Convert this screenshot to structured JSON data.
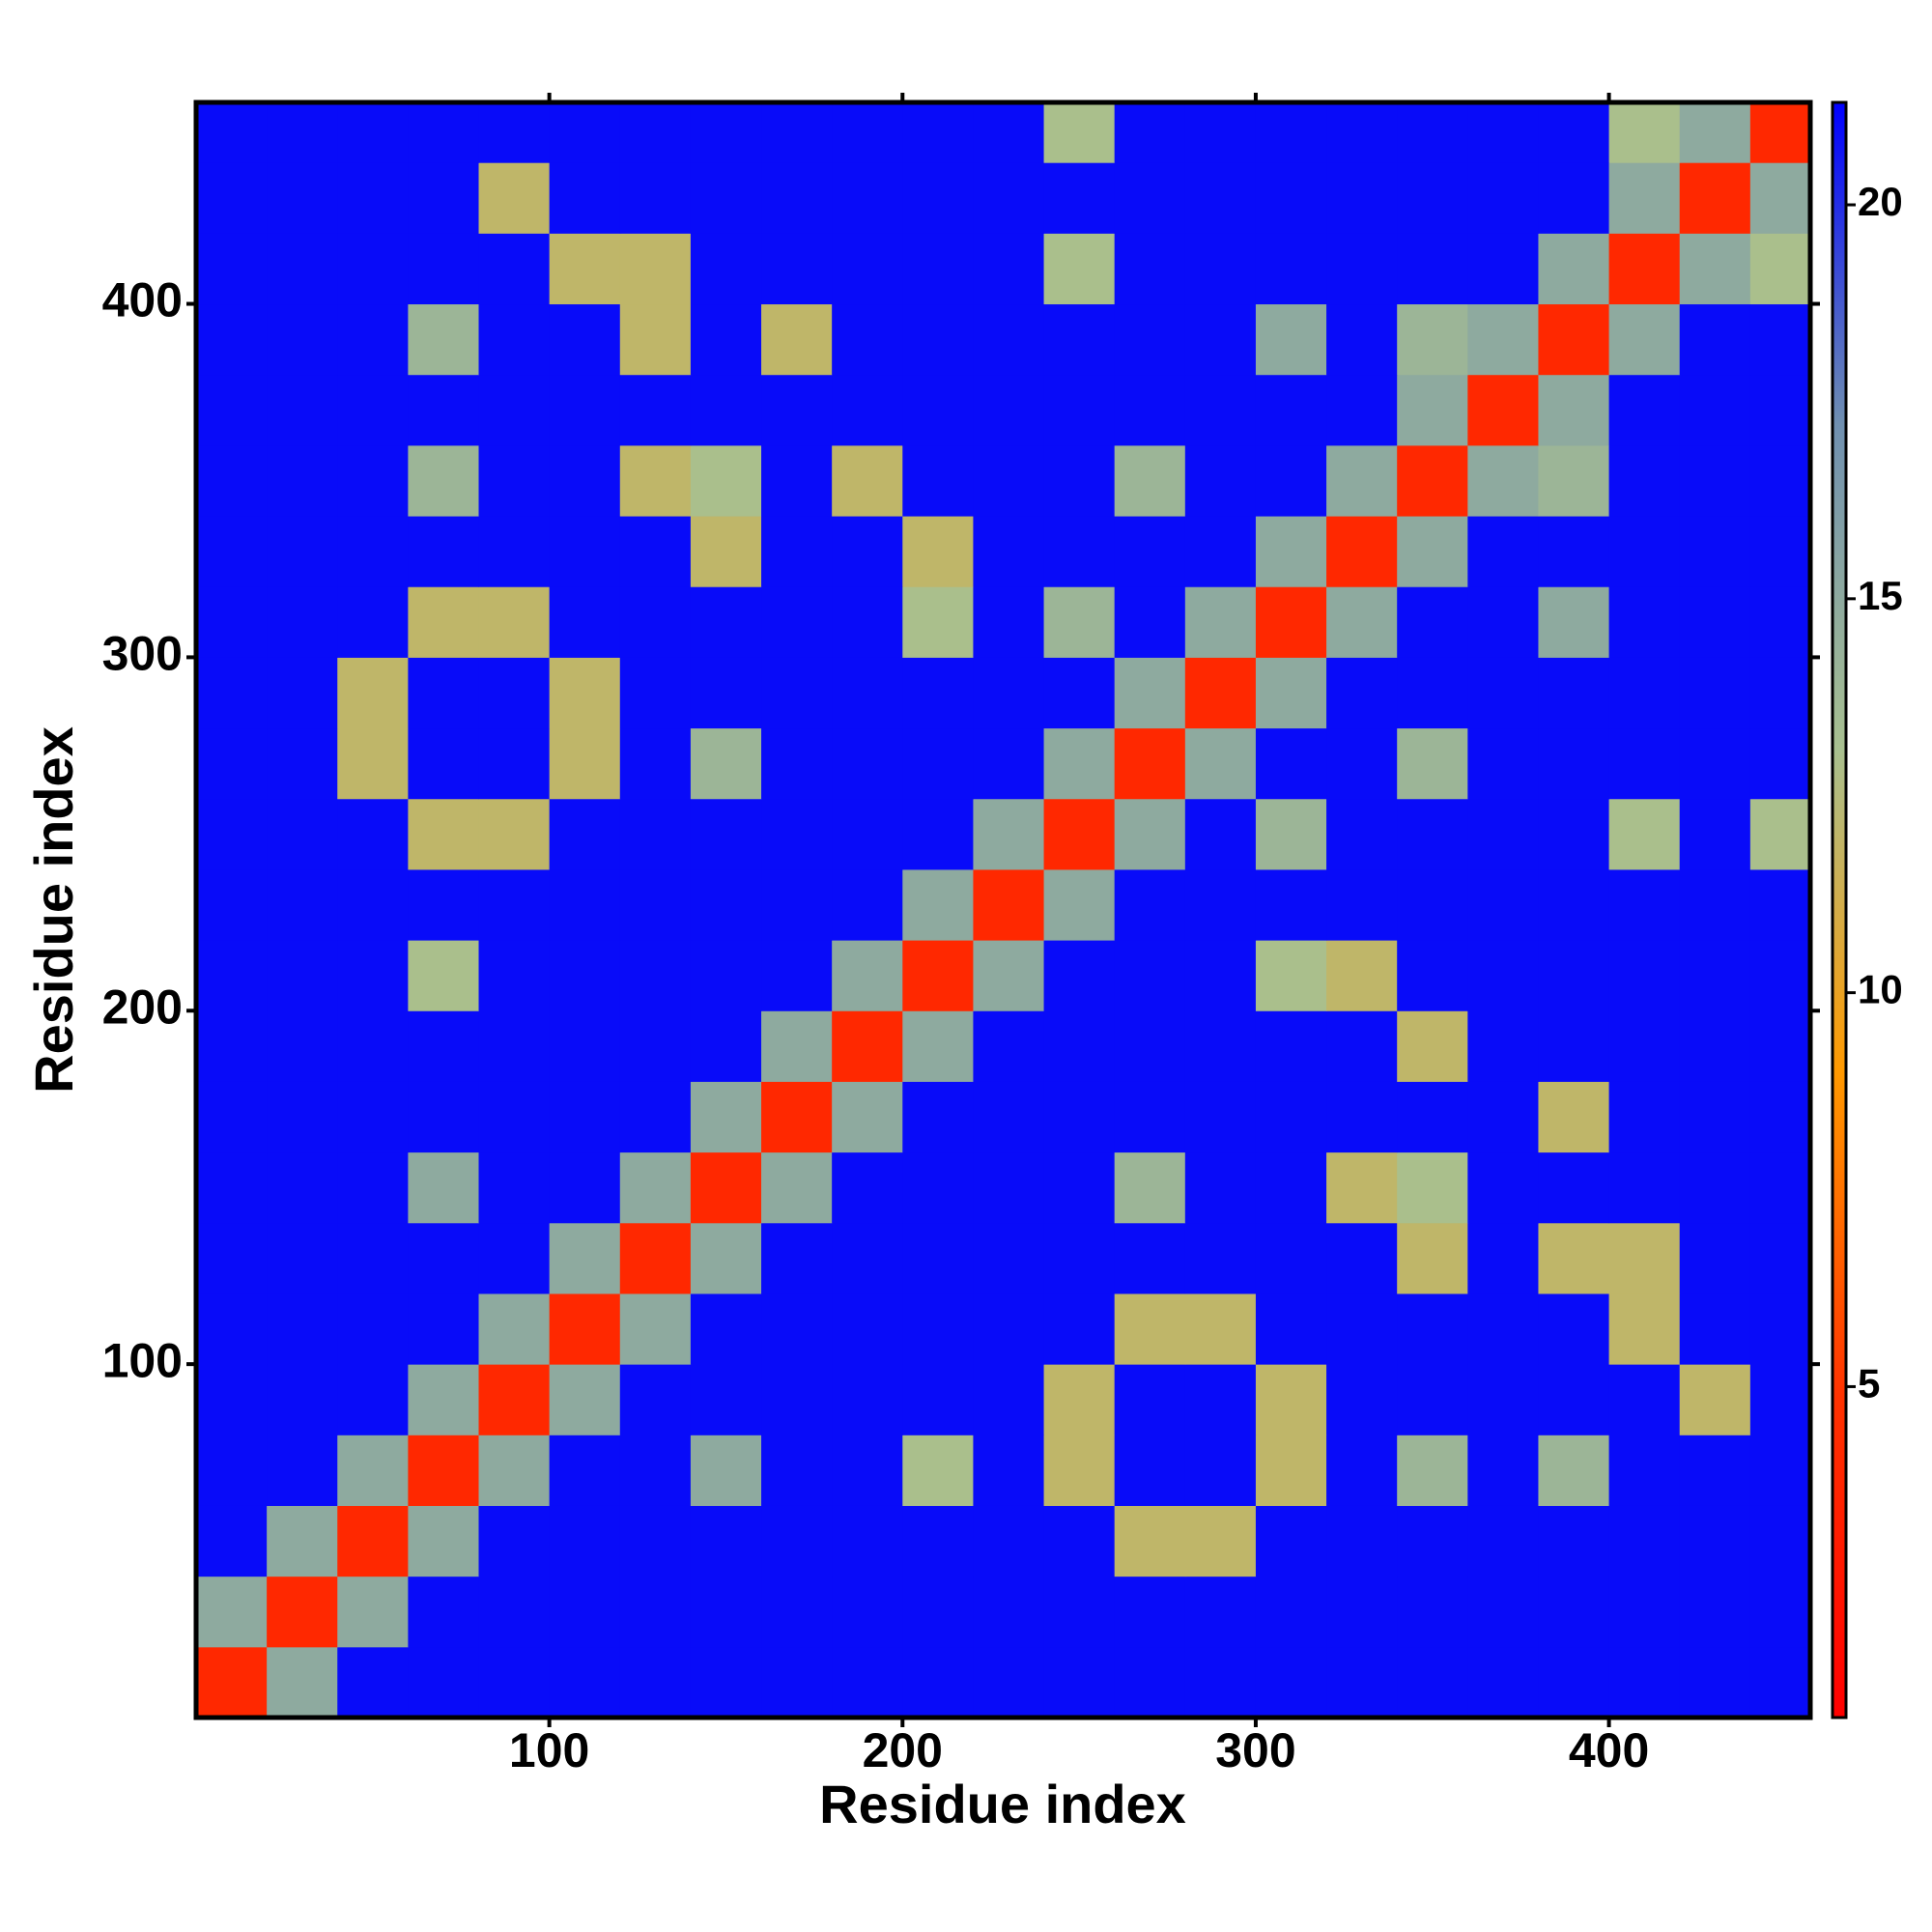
{
  "chart_data": {
    "type": "heatmap",
    "x_label": "Residue index",
    "y_label": "Residue index",
    "x": [
      10,
      30,
      50,
      70,
      90,
      110,
      130,
      150,
      170,
      190,
      210,
      230,
      250,
      270,
      290,
      310,
      330,
      350,
      370,
      390,
      410,
      430,
      450
    ],
    "y": [
      10,
      30,
      50,
      70,
      90,
      110,
      130,
      150,
      170,
      190,
      210,
      230,
      250,
      270,
      290,
      310,
      330,
      350,
      370,
      390,
      410,
      430,
      450
    ],
    "z": [
      [
        4,
        15,
        21,
        21,
        21,
        21,
        21,
        21,
        21,
        21,
        21,
        21,
        21,
        21,
        21,
        21,
        21,
        21,
        21,
        21,
        21,
        21,
        21
      ],
      [
        15,
        4,
        15,
        21,
        21,
        21,
        21,
        21,
        21,
        21,
        21,
        21,
        21,
        21,
        21,
        21,
        21,
        21,
        21,
        21,
        21,
        21,
        21
      ],
      [
        21,
        15,
        4,
        15,
        21,
        21,
        21,
        21,
        21,
        21,
        21,
        21,
        21,
        12,
        12,
        21,
        21,
        21,
        21,
        21,
        21,
        21,
        21
      ],
      [
        21,
        21,
        15,
        4,
        15,
        21,
        21,
        15,
        21,
        21,
        13,
        21,
        12,
        21,
        21,
        12,
        21,
        14,
        21,
        14,
        21,
        21,
        21
      ],
      [
        21,
        21,
        21,
        15,
        4,
        15,
        21,
        21,
        21,
        21,
        21,
        21,
        12,
        21,
        21,
        12,
        21,
        21,
        21,
        21,
        21,
        12,
        21
      ],
      [
        21,
        21,
        21,
        21,
        15,
        4,
        15,
        21,
        21,
        21,
        21,
        21,
        21,
        12,
        12,
        21,
        21,
        21,
        21,
        21,
        12,
        21,
        21
      ],
      [
        21,
        21,
        21,
        21,
        21,
        15,
        4,
        15,
        21,
        21,
        21,
        21,
        21,
        21,
        21,
        21,
        21,
        12,
        21,
        12,
        12,
        21,
        21
      ],
      [
        21,
        21,
        21,
        15,
        21,
        21,
        15,
        4,
        15,
        21,
        21,
        21,
        21,
        14,
        21,
        21,
        12,
        13,
        21,
        21,
        21,
        21,
        21
      ],
      [
        21,
        21,
        21,
        21,
        21,
        21,
        21,
        15,
        4,
        15,
        21,
        21,
        21,
        21,
        21,
        21,
        21,
        21,
        21,
        12,
        21,
        21,
        21
      ],
      [
        21,
        21,
        21,
        21,
        21,
        21,
        21,
        21,
        15,
        4,
        15,
        21,
        21,
        21,
        21,
        21,
        21,
        12,
        21,
        21,
        21,
        21,
        21
      ],
      [
        21,
        21,
        21,
        13,
        21,
        21,
        21,
        21,
        21,
        15,
        4,
        15,
        21,
        21,
        21,
        13,
        12,
        21,
        21,
        21,
        21,
        21,
        21
      ],
      [
        21,
        21,
        21,
        21,
        21,
        21,
        21,
        21,
        21,
        21,
        15,
        4,
        15,
        21,
        21,
        21,
        21,
        21,
        21,
        21,
        21,
        21,
        21
      ],
      [
        21,
        21,
        21,
        12,
        12,
        21,
        21,
        21,
        21,
        21,
        21,
        15,
        4,
        15,
        21,
        14,
        21,
        21,
        21,
        21,
        13,
        21,
        13
      ],
      [
        21,
        21,
        12,
        21,
        21,
        12,
        21,
        14,
        21,
        21,
        21,
        21,
        15,
        4,
        15,
        21,
        21,
        14,
        21,
        21,
        21,
        21,
        21
      ],
      [
        21,
        21,
        12,
        21,
        21,
        12,
        21,
        21,
        21,
        21,
        21,
        21,
        21,
        15,
        4,
        15,
        21,
        21,
        21,
        21,
        21,
        21,
        21
      ],
      [
        21,
        21,
        21,
        12,
        12,
        21,
        21,
        21,
        21,
        21,
        13,
        21,
        14,
        21,
        15,
        4,
        15,
        21,
        21,
        15,
        21,
        21,
        21
      ],
      [
        21,
        21,
        21,
        21,
        21,
        21,
        21,
        12,
        21,
        21,
        12,
        21,
        21,
        21,
        21,
        15,
        4,
        15,
        21,
        21,
        21,
        21,
        21
      ],
      [
        21,
        21,
        21,
        14,
        21,
        21,
        12,
        13,
        21,
        12,
        21,
        21,
        21,
        14,
        21,
        21,
        15,
        4,
        15,
        14,
        21,
        21,
        21
      ],
      [
        21,
        21,
        21,
        21,
        21,
        21,
        21,
        21,
        21,
        21,
        21,
        21,
        21,
        21,
        21,
        21,
        21,
        15,
        4,
        15,
        21,
        21,
        21
      ],
      [
        21,
        21,
        21,
        14,
        21,
        21,
        12,
        21,
        12,
        21,
        21,
        21,
        21,
        21,
        21,
        15,
        21,
        14,
        15,
        4,
        15,
        21,
        21
      ],
      [
        21,
        21,
        21,
        21,
        21,
        12,
        12,
        21,
        21,
        21,
        21,
        21,
        13,
        21,
        21,
        21,
        21,
        21,
        21,
        15,
        4,
        15,
        13
      ],
      [
        21,
        21,
        21,
        21,
        12,
        21,
        21,
        21,
        21,
        21,
        21,
        21,
        21,
        21,
        21,
        21,
        21,
        21,
        21,
        21,
        15,
        4,
        15
      ],
      [
        21,
        21,
        21,
        21,
        21,
        21,
        21,
        21,
        21,
        21,
        21,
        21,
        13,
        21,
        21,
        21,
        21,
        21,
        21,
        21,
        13,
        15,
        4
      ]
    ],
    "xlim": [
      0,
      457
    ],
    "ylim": [
      0,
      457
    ],
    "xticks": [
      100,
      200,
      300,
      400
    ],
    "yticks": [
      100,
      200,
      300,
      400
    ],
    "colorbar": {
      "lim": [
        0.8,
        21.3
      ],
      "ticks": [
        5,
        10,
        15,
        20
      ],
      "colors": [
        "#ff0000",
        "#ff3300",
        "#ff9900",
        "#a8c090",
        "#7090b0",
        "#0000ff"
      ]
    }
  }
}
